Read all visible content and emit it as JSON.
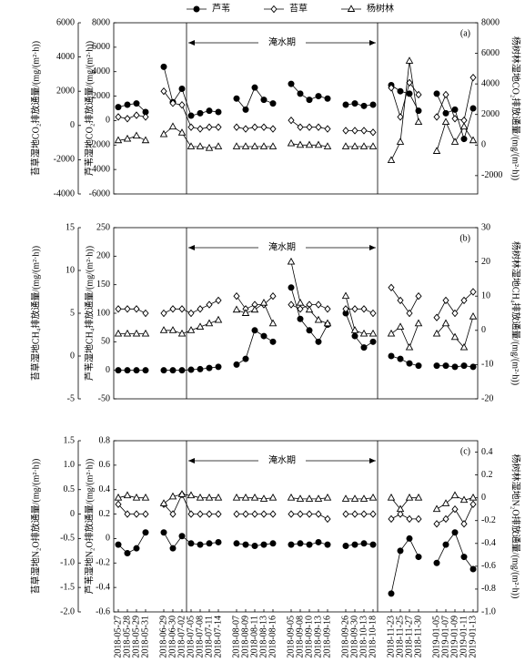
{
  "chart_data": {
    "type": "line",
    "legend": [
      {
        "name": "芦苇",
        "marker": "circle"
      },
      {
        "name": "苔草",
        "marker": "diamond"
      },
      {
        "name": "杨树林",
        "marker": "triangle"
      }
    ],
    "color": "#000000",
    "categories": [
      "2018-05-27",
      "2018-05-28",
      "2018-05-29",
      "2018-05-31",
      null,
      "2018-06-29",
      "2018-06-30",
      "2018-07-02",
      "2018-07-05",
      "2018-07-08",
      "2018-07-11",
      "2018-07-14",
      null,
      "2018-08-07",
      "2018-08-09",
      "2018-08-11",
      "2018-08-13",
      "2018-08-16",
      null,
      "2018-09-05",
      "2018-09-08",
      "2018-09-10",
      "2018-09-13",
      "2018-09-16",
      null,
      "2018-09-26",
      "2018-09-30",
      "2018-10-13",
      "2018-10-18",
      null,
      "2018-11-23",
      "2018-11-25",
      "2018-11-27",
      "2018-11-30",
      null,
      "2019-01-05",
      "2019-01-07",
      "2019-01-09",
      "2019-01-11",
      "2019-01-13"
    ],
    "panels": [
      {
        "label": "(a)",
        "annotation": "淹水期",
        "y_outer": {
          "title": "苔草湿地CO₂排放通量/(mg/(m²·h))",
          "lim": [
            -4000,
            6000
          ],
          "ticks": [
            -4000,
            -2000,
            0,
            2000,
            4000,
            6000
          ]
        },
        "y_inner": {
          "title": "芦苇湿地CO₂排放通量/(mg/(m²·h))",
          "lim": [
            -6000,
            8000
          ],
          "ticks": [
            -6000,
            -4000,
            -2000,
            0,
            2000,
            4000,
            6000,
            8000
          ]
        },
        "y2": {
          "title": "杨树林湿地CO₂排放通量/(mg/(m²·h))",
          "lim": [
            -3200,
            8000
          ],
          "ticks": [
            -2000,
            0,
            2000,
            4000,
            6000,
            8000
          ]
        },
        "series": [
          {
            "axis": "y_inner",
            "values": [
              1100,
              1300,
              1400,
              700,
              null,
              4400,
              1500,
              2600,
              400,
              600,
              800,
              700,
              null,
              1800,
              900,
              2700,
              1700,
              1400,
              null,
              3000,
              2200,
              1700,
              2000,
              1800,
              null,
              1300,
              1400,
              1200,
              1300,
              null,
              2900,
              2400,
              2200,
              800,
              null,
              2200,
              600,
              900,
              -1500,
              1000
            ]
          },
          {
            "axis": "y_outer",
            "values": [
              500,
              400,
              600,
              500,
              null,
              2000,
              1300,
              1200,
              -100,
              -200,
              -100,
              -100,
              null,
              -100,
              -200,
              -100,
              -100,
              -200,
              null,
              300,
              -100,
              -100,
              -100,
              -200,
              null,
              -300,
              -300,
              -300,
              -400,
              null,
              2200,
              500,
              2500,
              1800,
              null,
              500,
              1800,
              400,
              300,
              2800
            ]
          },
          {
            "axis": "y2",
            "values": [
              300,
              400,
              600,
              300,
              null,
              700,
              1200,
              800,
              -100,
              -100,
              -200,
              -100,
              null,
              -100,
              -100,
              -100,
              -100,
              -100,
              null,
              100,
              0,
              0,
              0,
              -100,
              null,
              -100,
              -100,
              -100,
              -100,
              null,
              -1000,
              200,
              5500,
              1500,
              null,
              -400,
              1500,
              200,
              1200,
              300
            ]
          }
        ]
      },
      {
        "label": "(b)",
        "annotation": "淹水期",
        "y_outer": {
          "title": "苔草湿地CH₄排放通量/(mg/(m²·h))",
          "lim": [
            -5,
            15
          ],
          "ticks": [
            -5,
            0,
            5,
            10,
            15
          ]
        },
        "y_inner": {
          "title": "芦苇湿地CH₄排放通量/(mg/(m²·h))",
          "lim": [
            -50,
            250
          ],
          "ticks": [
            -50,
            0,
            50,
            100,
            150,
            200,
            250
          ]
        },
        "y2": {
          "title": "杨树林湿地CH₄排放通量/(mg/(m²·h))",
          "lim": [
            -20,
            30
          ],
          "ticks": [
            -20,
            -10,
            0,
            10,
            20,
            30
          ]
        },
        "series": [
          {
            "axis": "y_inner",
            "values": [
              0,
              0,
              0,
              0,
              null,
              0,
              0,
              0,
              1,
              2,
              4,
              6,
              null,
              10,
              20,
              70,
              60,
              50,
              null,
              145,
              90,
              70,
              50,
              80,
              null,
              100,
              60,
              40,
              50,
              null,
              25,
              20,
              12,
              8,
              null,
              8,
              8,
              6,
              8,
              6
            ]
          },
          {
            "axis": "y_outer",
            "values": [
              5.5,
              5.5,
              5.5,
              5,
              null,
              5,
              5.5,
              5.5,
              5,
              5.5,
              6,
              6.5,
              null,
              7,
              5.5,
              6,
              6,
              7,
              null,
              6,
              5.5,
              6,
              6,
              5.5,
              null,
              5.5,
              5.5,
              5.5,
              5,
              null,
              8,
              6.5,
              5,
              7,
              null,
              4.5,
              6.5,
              5,
              6.5,
              7.5
            ]
          },
          {
            "axis": "y2",
            "values": [
              -1,
              -1,
              -1,
              -1,
              null,
              0,
              0,
              -1,
              0,
              1,
              2,
              3,
              null,
              6,
              5,
              6,
              8,
              2,
              null,
              20,
              8,
              6,
              3,
              2,
              null,
              10,
              0,
              -1,
              -1,
              null,
              -1,
              1,
              -5,
              2,
              null,
              -1,
              2,
              -2,
              -5,
              4
            ]
          }
        ]
      },
      {
        "label": "(c)",
        "annotation": "淹水期",
        "y_outer": {
          "title": "苔草湿地N₂O排放通量/(mg/(m²·h))",
          "lim": [
            -2,
            1.5
          ],
          "ticks": [
            {
              "value": -2,
              "label": "-2.0"
            },
            -1.5,
            {
              "value": -1,
              "label": "-1.0"
            },
            -0.5,
            0,
            0.5,
            {
              "value": 1,
              "label": "1.0"
            },
            1.5
          ]
        },
        "y_inner": {
          "title": "芦苇湿地N₂O排放通量/(mg/(m²·h))",
          "lim": [
            -0.6,
            0.8
          ],
          "ticks": [
            -0.6,
            -0.4,
            -0.2,
            0,
            0.2,
            0.4,
            0.6,
            0.8
          ]
        },
        "y2": {
          "title": "杨树林湿地N₂O排放通量/(mg/(m²·h))",
          "lim": [
            -1,
            0.5
          ],
          "ticks": [
            {
              "value": -1,
              "label": "-1.0"
            },
            -0.8,
            -0.6,
            -0.4,
            -0.2,
            0,
            0.2,
            0.4
          ]
        },
        "series": [
          {
            "axis": "y_inner",
            "values": [
              -0.05,
              -0.12,
              -0.08,
              0.05,
              null,
              0.05,
              -0.08,
              0.02,
              -0.04,
              -0.05,
              -0.04,
              -0.03,
              null,
              -0.04,
              -0.05,
              -0.06,
              -0.05,
              -0.04,
              null,
              -0.05,
              -0.04,
              -0.05,
              -0.03,
              -0.05,
              null,
              -0.06,
              -0.05,
              -0.04,
              -0.05,
              null,
              -0.45,
              -0.1,
              0,
              -0.15,
              null,
              -0.2,
              -0.05,
              0.05,
              -0.15,
              -0.25
            ]
          },
          {
            "axis": "y_outer",
            "values": [
              0.2,
              0,
              0,
              0,
              null,
              0.2,
              0,
              0.4,
              0,
              0,
              0,
              0,
              null,
              0,
              0,
              0,
              0,
              0,
              null,
              0,
              0,
              0,
              0,
              -0.1,
              null,
              0,
              0,
              0,
              0,
              null,
              -0.1,
              0,
              -0.1,
              -0.1,
              null,
              -0.2,
              -0.1,
              0.1,
              -0.2,
              0.2
            ]
          },
          {
            "axis": "y2",
            "values": [
              0,
              0.02,
              0,
              0,
              null,
              -0.05,
              0.01,
              0.03,
              0.02,
              0,
              0,
              0,
              null,
              0,
              0,
              0,
              -0.01,
              0,
              null,
              0,
              -0.01,
              -0.01,
              -0.01,
              0,
              null,
              -0.01,
              -0.01,
              -0.01,
              0,
              null,
              0,
              -0.1,
              0,
              0,
              null,
              -0.1,
              -0.05,
              0.02,
              -0.02,
              0
            ]
          }
        ]
      }
    ]
  }
}
